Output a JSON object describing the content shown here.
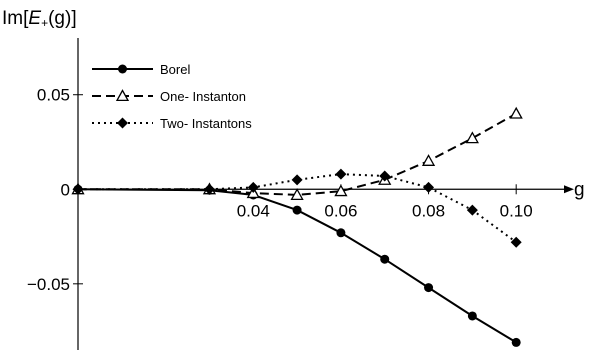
{
  "chart_data": {
    "type": "line",
    "title": "",
    "ylabel": {
      "prefix": "Im[",
      "italic": "E",
      "sub": "+",
      "suffix": "(g)]"
    },
    "xlabel": "g",
    "xlim": [
      0.0,
      0.11
    ],
    "ylim": [
      -0.085,
      0.08
    ],
    "x_ticks": [
      {
        "value": 0.04,
        "label": "0.04"
      },
      {
        "value": 0.06,
        "label": "0.06"
      },
      {
        "value": 0.08,
        "label": "0.08"
      },
      {
        "value": 0.1,
        "label": "0.10"
      }
    ],
    "y_ticks": [
      {
        "value": 0.05,
        "label": "0.05"
      },
      {
        "value": 0,
        "label": "0"
      },
      {
        "value": -0.05,
        "label": "−0.05"
      }
    ],
    "grid": false,
    "legend_position": "top-left",
    "series": [
      {
        "name": "Borel",
        "style": "solid",
        "marker": "filled-circle",
        "color": "#000000",
        "x": [
          0.0,
          0.03,
          0.04,
          0.05,
          0.06,
          0.07,
          0.08,
          0.09,
          0.1
        ],
        "y": [
          0.0,
          -0.0005,
          -0.003,
          -0.011,
          -0.023,
          -0.037,
          -0.052,
          -0.067,
          -0.081
        ]
      },
      {
        "name": "One- Instanton",
        "style": "dashed",
        "marker": "open-triangle",
        "color": "#000000",
        "x": [
          0.0,
          0.03,
          0.04,
          0.05,
          0.06,
          0.07,
          0.08,
          0.09,
          0.1
        ],
        "y": [
          0.0,
          0.0,
          -0.002,
          -0.003,
          -0.001,
          0.005,
          0.015,
          0.027,
          0.04
        ]
      },
      {
        "name": "Two- Instantons",
        "style": "dotted",
        "marker": "filled-diamond",
        "color": "#000000",
        "x": [
          0.0,
          0.03,
          0.04,
          0.05,
          0.06,
          0.07,
          0.08,
          0.09,
          0.1
        ],
        "y": [
          0.0,
          0.0,
          0.001,
          0.005,
          0.008,
          0.007,
          0.001,
          -0.011,
          -0.028
        ]
      }
    ]
  }
}
